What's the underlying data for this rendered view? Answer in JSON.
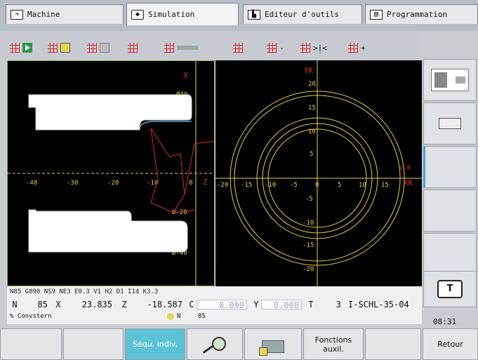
{
  "tabs": [
    {
      "label": "Machine",
      "icon": "arrow-right-icon"
    },
    {
      "label": "Simulation",
      "icon": "diamond-arrow-icon"
    },
    {
      "label": "Editeur d'outils",
      "icon": "tool-icon"
    },
    {
      "label": "Programmation",
      "icon": "program-icon"
    }
  ],
  "toolbar": {
    "minus": "-",
    "step": ">|<",
    "plus": "+"
  },
  "left_view": {
    "axis_x": "X",
    "axis_z": "Z",
    "x_ticks": [
      "-40",
      "-30",
      "-20",
      "-10",
      "0"
    ],
    "y_ticks": [
      "Ø40",
      "Ø-20",
      "Ø-40"
    ]
  },
  "right_view": {
    "axis_y": "YK",
    "axis_x": "XK",
    "x_ticks": [
      "-20",
      "-15",
      "-10",
      "-5",
      "0",
      "5",
      "10",
      "15"
    ],
    "y_ticks": [
      "20",
      "15",
      "10",
      "5",
      "-5",
      "-10",
      "-15",
      "-20"
    ],
    "c_label": "C-0"
  },
  "status": {
    "nc_line": "N85 G890 NS9 NE3 E0.3 V1 H2 D1 I14 K3.3",
    "n_label": "N",
    "n_value": "85",
    "x_label": "X",
    "x_value": "23.835",
    "z_label": "Z",
    "z_value": "-18.587",
    "c_label": "C",
    "c_value": "0.000",
    "y_label": "Y",
    "y_value": "0.000",
    "t_label": "T",
    "t_value": "3",
    "tool_name": "I-SCHL-35-04",
    "comment": "% Convstern",
    "n2": "N",
    "n2_value": "85"
  },
  "clock": "08:31",
  "bottom": {
    "sequ": "Séqu. indiv.",
    "fonctions": "Fonctions auxil.",
    "retour": "Retour"
  },
  "colors": {
    "contour": "#ffffff",
    "path": "#d42a2a",
    "circles": "#e3cf4a",
    "axes": "#e3cf4a",
    "highlight": "#5cc2d6",
    "frame": "#8ab34a"
  }
}
